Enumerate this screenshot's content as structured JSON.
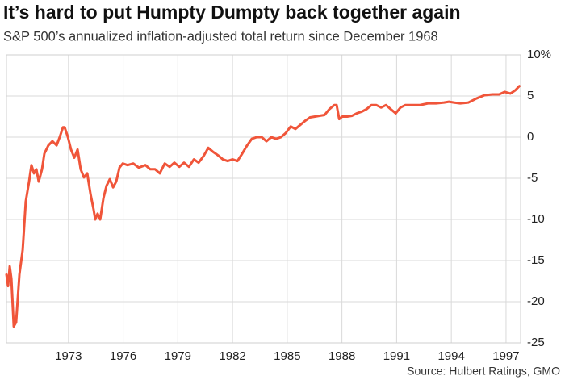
{
  "chart_data": {
    "type": "line",
    "title": "It’s hard to put Humpty Dumpty back together again",
    "subtitle": "S&P 500’s annualized inflation-adjusted total return since December 1968",
    "source": "Source: Hulbert Ratings, GMO",
    "x": [
      1969.6,
      1969.69,
      1969.78,
      1969.87,
      1970.0,
      1970.13,
      1970.31,
      1970.49,
      1970.66,
      1970.84,
      1970.97,
      1971.11,
      1971.24,
      1971.37,
      1971.55,
      1971.68,
      1971.9,
      1972.12,
      1972.35,
      1972.52,
      1972.7,
      1972.79,
      1972.97,
      1973.14,
      1973.32,
      1973.5,
      1973.67,
      1973.85,
      1974.03,
      1974.21,
      1974.38,
      1974.47,
      1974.6,
      1974.74,
      1974.92,
      1975.09,
      1975.27,
      1975.45,
      1975.62,
      1975.8,
      1975.98,
      1976.24,
      1976.55,
      1976.86,
      1977.22,
      1977.48,
      1977.75,
      1978.01,
      1978.28,
      1978.55,
      1978.81,
      1979.08,
      1979.34,
      1979.61,
      1979.88,
      1980.14,
      1980.41,
      1980.67,
      1980.94,
      1981.2,
      1981.47,
      1981.73,
      1982.0,
      1982.27,
      1982.53,
      1982.8,
      1983.06,
      1983.33,
      1983.6,
      1983.86,
      1984.13,
      1984.39,
      1984.66,
      1984.92,
      1985.19,
      1985.45,
      1985.72,
      1985.99,
      1986.25,
      1986.52,
      1986.78,
      1987.05,
      1987.31,
      1987.58,
      1987.71,
      1987.85,
      1988.02,
      1988.29,
      1988.56,
      1988.82,
      1989.09,
      1989.35,
      1989.62,
      1989.88,
      1990.15,
      1990.42,
      1990.68,
      1990.95,
      1991.21,
      1991.48,
      1991.83,
      1992.28,
      1992.72,
      1993.16,
      1993.6,
      1993.87,
      1994.14,
      1994.49,
      1994.93,
      1995.38,
      1995.82,
      1996.26,
      1996.62,
      1996.93,
      1997.24,
      1997.51,
      1997.73
    ],
    "series": [
      {
        "color": "#f0553a",
        "values": [
          -16.7,
          -18.1,
          -15.7,
          -17.2,
          -23.0,
          -22.5,
          -16.7,
          -13.7,
          -7.8,
          -5.4,
          -3.4,
          -4.4,
          -3.9,
          -5.4,
          -3.9,
          -2.0,
          -1.0,
          -0.5,
          -1.0,
          0,
          1.2,
          1.2,
          0,
          -1.5,
          -2.5,
          -1.5,
          -3.9,
          -4.9,
          -4.4,
          -6.9,
          -8.8,
          -10.0,
          -9.3,
          -10.0,
          -7.4,
          -5.9,
          -5.1,
          -6.1,
          -5.4,
          -3.7,
          -3.2,
          -3.4,
          -3.2,
          -3.7,
          -3.4,
          -3.9,
          -3.9,
          -4.4,
          -3.2,
          -3.6,
          -3.1,
          -3.6,
          -3.1,
          -3.6,
          -2.7,
          -3.1,
          -2.3,
          -1.3,
          -1.8,
          -2.2,
          -2.7,
          -2.9,
          -2.7,
          -2.9,
          -2.0,
          -1.0,
          -0.2,
          0,
          0,
          -0.5,
          0,
          -0.2,
          0,
          0.5,
          1.3,
          1.0,
          1.5,
          2.0,
          2.4,
          2.5,
          2.6,
          2.7,
          3.4,
          3.9,
          3.9,
          2.2,
          2.5,
          2.5,
          2.6,
          2.9,
          3.1,
          3.4,
          3.9,
          3.9,
          3.6,
          3.9,
          3.4,
          2.9,
          3.6,
          3.9,
          3.9,
          3.9,
          4.1,
          4.1,
          4.2,
          4.3,
          4.2,
          4.1,
          4.2,
          4.7,
          5.1,
          5.2,
          5.2,
          5.5,
          5.3,
          5.7,
          6.2
        ]
      }
    ],
    "xlim": [
      1969.6,
      1997.8
    ],
    "xticks": [
      1973,
      1976,
      1979,
      1982,
      1985,
      1988,
      1991,
      1994,
      1997
    ],
    "ylim": [
      -25,
      10
    ],
    "yticks": [
      {
        "value": 10,
        "label": "10%"
      },
      5,
      0,
      -5,
      -10,
      -15,
      -20,
      -25
    ],
    "grid": true
  }
}
